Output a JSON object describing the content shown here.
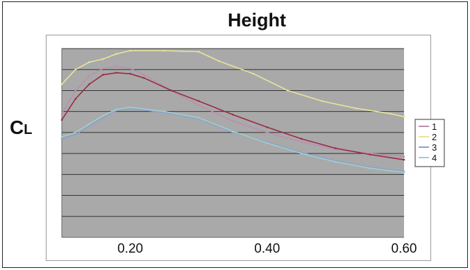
{
  "chart_data": {
    "type": "line",
    "title": "Height",
    "ylabel_main": "C",
    "ylabel_sub": "L",
    "xlabel": "",
    "xlim": [
      0.1,
      0.6
    ],
    "ylim": [
      0,
      9
    ],
    "x_ticks": [
      0.2,
      0.4,
      0.6
    ],
    "x_tick_labels": [
      "0.20",
      "0.40",
      "0.60"
    ],
    "grid": true,
    "legend_position": "right",
    "plot_background": "#a9a9a9",
    "series": [
      {
        "name": "1",
        "color": "#b98fb0",
        "x": [
          0.1,
          0.12,
          0.14,
          0.16,
          0.18,
          0.2,
          0.22,
          0.26,
          0.3,
          0.35,
          0.4,
          0.45,
          0.5,
          0.55,
          0.6
        ],
        "y": [
          5.9,
          7.0,
          7.7,
          8.05,
          8.15,
          8.05,
          7.75,
          7.0,
          6.3,
          5.55,
          5.0,
          4.55,
          4.2,
          4.0,
          3.85
        ]
      },
      {
        "name": "2",
        "color": "#e8e49a",
        "x": [
          0.1,
          0.12,
          0.14,
          0.16,
          0.18,
          0.2,
          0.25,
          0.3,
          0.33,
          0.38,
          0.43,
          0.48,
          0.53,
          0.58,
          0.6
        ],
        "y": [
          7.3,
          8.0,
          8.35,
          8.5,
          8.75,
          8.9,
          8.9,
          8.85,
          8.4,
          7.8,
          7.0,
          6.5,
          6.15,
          5.9,
          5.75
        ]
      },
      {
        "name": "3",
        "color": "#8aa0d2",
        "x": [
          0.1,
          0.12,
          0.14,
          0.16,
          0.18,
          0.2,
          0.25,
          0.3,
          0.35,
          0.4,
          0.45,
          0.5,
          0.55,
          0.6
        ],
        "y": [
          4.7,
          4.9,
          5.3,
          5.7,
          6.05,
          6.15,
          5.95,
          5.65,
          5.0,
          4.55,
          4.05,
          3.65,
          3.35,
          3.15
        ]
      },
      {
        "name": "4",
        "color": "#a2cfc8",
        "x": [
          0.1,
          0.12,
          0.14,
          0.16,
          0.18,
          0.2,
          0.25,
          0.3,
          0.35,
          0.4,
          0.45,
          0.5,
          0.55,
          0.6
        ],
        "y": [
          4.8,
          5.0,
          5.4,
          5.8,
          6.1,
          6.2,
          6.0,
          5.7,
          5.05,
          4.5,
          4.0,
          3.6,
          3.3,
          3.1
        ]
      },
      {
        "name": "",
        "color": "#9b2a45",
        "x": [
          0.1,
          0.12,
          0.14,
          0.16,
          0.18,
          0.2,
          0.22,
          0.26,
          0.3,
          0.35,
          0.4,
          0.45,
          0.5,
          0.55,
          0.6
        ],
        "y": [
          5.6,
          6.6,
          7.3,
          7.75,
          7.85,
          7.8,
          7.6,
          7.0,
          6.5,
          5.85,
          5.25,
          4.7,
          4.25,
          3.95,
          3.7
        ]
      }
    ]
  }
}
